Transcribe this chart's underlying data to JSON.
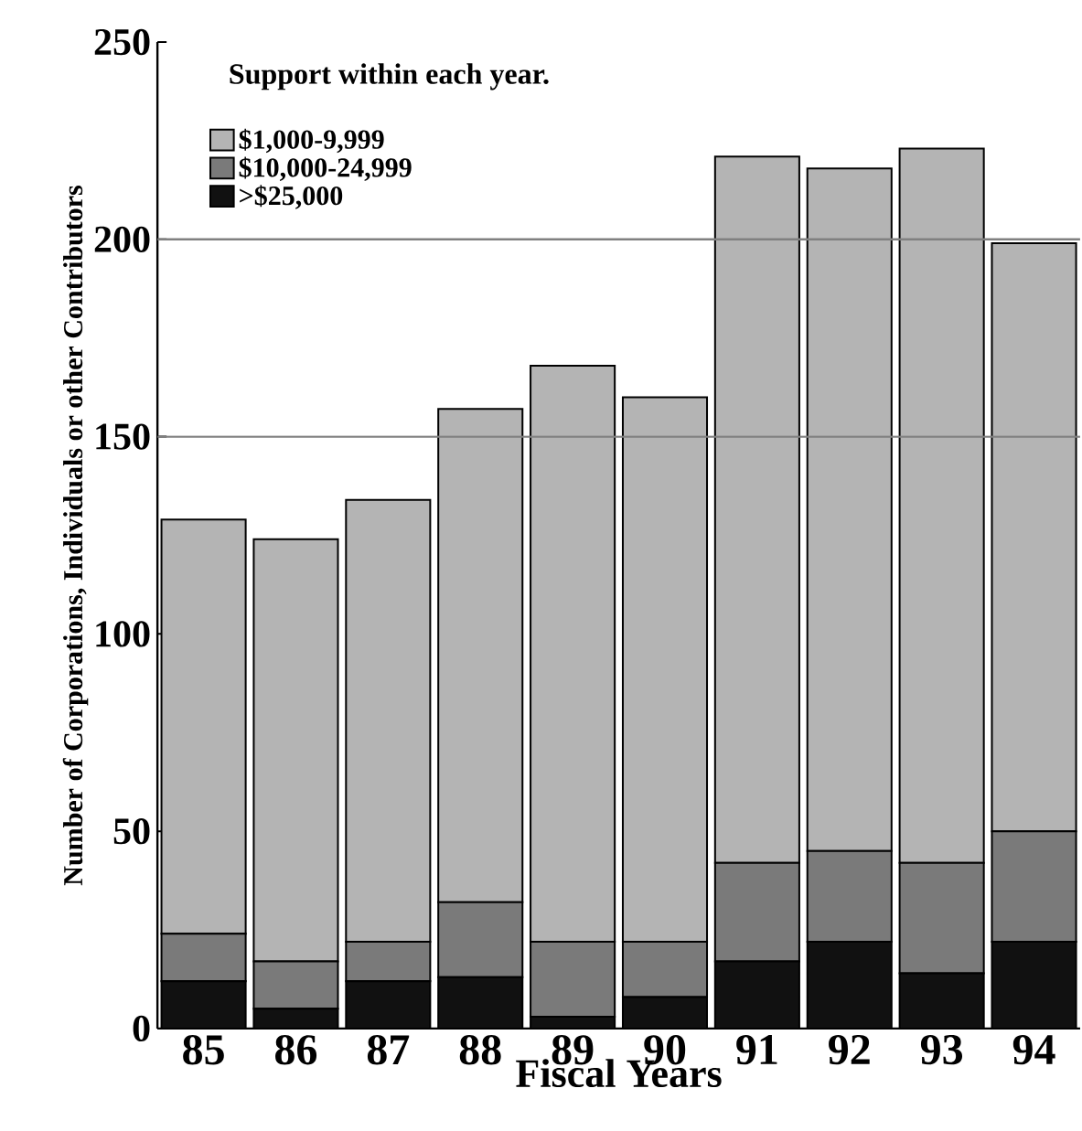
{
  "chart_data": {
    "type": "bar",
    "stacked": true,
    "xlabel": "Fiscal Years",
    "ylabel": "Number of Corporations, Individuals or other Contributors",
    "legend_title": "Support within each year.",
    "categories": [
      "85",
      "86",
      "87",
      "88",
      "89",
      "90",
      "91",
      "92",
      "93",
      "94"
    ],
    "series": [
      {
        "name": ">$25,000",
        "color": "#111111",
        "values": [
          12,
          5,
          12,
          13,
          3,
          8,
          17,
          22,
          14,
          22
        ]
      },
      {
        "name": "$10,000-24,999",
        "color": "#7a7a7a",
        "values": [
          12,
          12,
          10,
          19,
          19,
          14,
          25,
          23,
          28,
          28
        ]
      },
      {
        "name": "$1,000-9,999",
        "color": "#b4b4b4",
        "values": [
          105,
          107,
          112,
          125,
          146,
          138,
          179,
          173,
          181,
          149
        ]
      }
    ],
    "ylim": [
      0,
      250
    ],
    "yticks": [
      0,
      50,
      100,
      150,
      200,
      250
    ],
    "ref_lines": [
      {
        "axis": "y",
        "value": 150
      },
      {
        "axis": "y",
        "value": 200
      }
    ],
    "legend": "top left",
    "grid": false
  }
}
